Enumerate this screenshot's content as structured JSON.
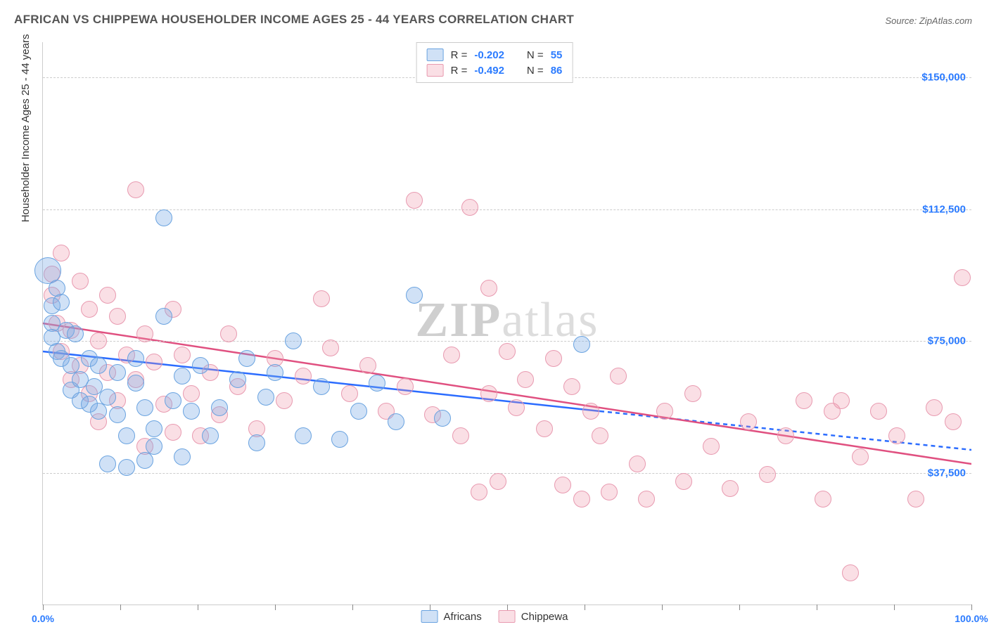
{
  "title": "AFRICAN VS CHIPPEWA HOUSEHOLDER INCOME AGES 25 - 44 YEARS CORRELATION CHART",
  "source": "Source: ZipAtlas.com",
  "watermark_a": "ZIP",
  "watermark_b": "atlas",
  "y_title": "Householder Income Ages 25 - 44 years",
  "x_min_label": "0.0%",
  "x_max_label": "100.0%",
  "legend_bottom": {
    "a": "Africans",
    "b": "Chippewa"
  },
  "stats": {
    "a": {
      "r_label": "R =",
      "r": "-0.202",
      "n_label": "N =",
      "n": "55"
    },
    "b": {
      "r_label": "R =",
      "r": "-0.492",
      "n_label": "N =",
      "n": "86"
    }
  },
  "chart": {
    "type": "scatter",
    "background_color": "#ffffff",
    "grid_color": "#cccccc",
    "x_range": [
      0,
      100
    ],
    "y_range": [
      0,
      160000
    ],
    "y_gridlines": [
      37500,
      75000,
      112500,
      150000
    ],
    "y_tick_labels": [
      "$37,500",
      "$75,000",
      "$112,500",
      "$150,000"
    ],
    "x_ticks": [
      0,
      8.33,
      16.67,
      25,
      33.33,
      41.67,
      50,
      58.33,
      66.67,
      75,
      83.33,
      91.67,
      100
    ],
    "colors": {
      "africans_fill": "rgba(120,170,230,0.35)",
      "africans_stroke": "#6aa3e0",
      "chippewa_fill": "rgba(240,150,170,0.30)",
      "chippewa_stroke": "#e89ab0",
      "line_africans": "#2b6cff",
      "line_chippewa": "#e05080",
      "tick_label": "#2b7bff"
    },
    "marker_radius": 11,
    "trend": {
      "africans": {
        "y_at_x0": 72000,
        "y_at_x60": 55000,
        "solid_until_x": 60,
        "y_at_x100": 44000
      },
      "chippewa": {
        "y_at_x0": 80000,
        "y_at_x100": 40000,
        "solid_until_x": 100
      }
    },
    "series": {
      "africans": [
        {
          "x": 0.5,
          "y": 95000,
          "r": 18
        },
        {
          "x": 1,
          "y": 85000
        },
        {
          "x": 1,
          "y": 80000
        },
        {
          "x": 1,
          "y": 76000
        },
        {
          "x": 1.5,
          "y": 90000
        },
        {
          "x": 1.5,
          "y": 72000
        },
        {
          "x": 2,
          "y": 86000
        },
        {
          "x": 2,
          "y": 70000
        },
        {
          "x": 2.5,
          "y": 78000
        },
        {
          "x": 3,
          "y": 68000
        },
        {
          "x": 3,
          "y": 61000
        },
        {
          "x": 3.5,
          "y": 77000
        },
        {
          "x": 4,
          "y": 58000
        },
        {
          "x": 4,
          "y": 64000
        },
        {
          "x": 5,
          "y": 57000
        },
        {
          "x": 5,
          "y": 70000
        },
        {
          "x": 5.5,
          "y": 62000
        },
        {
          "x": 6,
          "y": 55000
        },
        {
          "x": 6,
          "y": 68000
        },
        {
          "x": 7,
          "y": 40000
        },
        {
          "x": 7,
          "y": 59000
        },
        {
          "x": 8,
          "y": 66000
        },
        {
          "x": 8,
          "y": 54000
        },
        {
          "x": 9,
          "y": 48000
        },
        {
          "x": 9,
          "y": 39000
        },
        {
          "x": 10,
          "y": 63000
        },
        {
          "x": 10,
          "y": 70000
        },
        {
          "x": 11,
          "y": 56000
        },
        {
          "x": 11,
          "y": 41000
        },
        {
          "x": 12,
          "y": 50000
        },
        {
          "x": 12,
          "y": 45000
        },
        {
          "x": 13,
          "y": 82000
        },
        {
          "x": 13,
          "y": 110000
        },
        {
          "x": 14,
          "y": 58000
        },
        {
          "x": 15,
          "y": 65000
        },
        {
          "x": 15,
          "y": 42000
        },
        {
          "x": 16,
          "y": 55000
        },
        {
          "x": 17,
          "y": 68000
        },
        {
          "x": 18,
          "y": 48000
        },
        {
          "x": 19,
          "y": 56000
        },
        {
          "x": 21,
          "y": 64000
        },
        {
          "x": 22,
          "y": 70000
        },
        {
          "x": 23,
          "y": 46000
        },
        {
          "x": 24,
          "y": 59000
        },
        {
          "x": 25,
          "y": 66000
        },
        {
          "x": 27,
          "y": 75000
        },
        {
          "x": 28,
          "y": 48000
        },
        {
          "x": 30,
          "y": 62000
        },
        {
          "x": 32,
          "y": 47000
        },
        {
          "x": 34,
          "y": 55000
        },
        {
          "x": 36,
          "y": 63000
        },
        {
          "x": 38,
          "y": 52000
        },
        {
          "x": 40,
          "y": 88000
        },
        {
          "x": 43,
          "y": 53000
        },
        {
          "x": 58,
          "y": 74000
        }
      ],
      "chippewa": [
        {
          "x": 1,
          "y": 94000
        },
        {
          "x": 1,
          "y": 88000
        },
        {
          "x": 1.5,
          "y": 80000
        },
        {
          "x": 2,
          "y": 72000
        },
        {
          "x": 2,
          "y": 100000
        },
        {
          "x": 3,
          "y": 78000
        },
        {
          "x": 3,
          "y": 64000
        },
        {
          "x": 4,
          "y": 92000
        },
        {
          "x": 4,
          "y": 68000
        },
        {
          "x": 5,
          "y": 84000
        },
        {
          "x": 5,
          "y": 60000
        },
        {
          "x": 6,
          "y": 75000
        },
        {
          "x": 6,
          "y": 52000
        },
        {
          "x": 7,
          "y": 88000
        },
        {
          "x": 7,
          "y": 66000
        },
        {
          "x": 8,
          "y": 82000
        },
        {
          "x": 8,
          "y": 58000
        },
        {
          "x": 9,
          "y": 71000
        },
        {
          "x": 10,
          "y": 118000
        },
        {
          "x": 10,
          "y": 64000
        },
        {
          "x": 11,
          "y": 77000
        },
        {
          "x": 11,
          "y": 45000
        },
        {
          "x": 12,
          "y": 69000
        },
        {
          "x": 13,
          "y": 57000
        },
        {
          "x": 14,
          "y": 84000
        },
        {
          "x": 14,
          "y": 49000
        },
        {
          "x": 15,
          "y": 71000
        },
        {
          "x": 16,
          "y": 60000
        },
        {
          "x": 17,
          "y": 48000
        },
        {
          "x": 18,
          "y": 66000
        },
        {
          "x": 19,
          "y": 54000
        },
        {
          "x": 20,
          "y": 77000
        },
        {
          "x": 21,
          "y": 62000
        },
        {
          "x": 23,
          "y": 50000
        },
        {
          "x": 25,
          "y": 70000
        },
        {
          "x": 26,
          "y": 58000
        },
        {
          "x": 28,
          "y": 65000
        },
        {
          "x": 30,
          "y": 87000
        },
        {
          "x": 31,
          "y": 73000
        },
        {
          "x": 33,
          "y": 60000
        },
        {
          "x": 35,
          "y": 68000
        },
        {
          "x": 37,
          "y": 55000
        },
        {
          "x": 39,
          "y": 62000
        },
        {
          "x": 40,
          "y": 115000
        },
        {
          "x": 42,
          "y": 54000
        },
        {
          "x": 44,
          "y": 71000
        },
        {
          "x": 45,
          "y": 48000
        },
        {
          "x": 46,
          "y": 113000
        },
        {
          "x": 47,
          "y": 32000
        },
        {
          "x": 48,
          "y": 60000
        },
        {
          "x": 48,
          "y": 90000
        },
        {
          "x": 49,
          "y": 35000
        },
        {
          "x": 50,
          "y": 72000
        },
        {
          "x": 51,
          "y": 56000
        },
        {
          "x": 52,
          "y": 64000
        },
        {
          "x": 54,
          "y": 50000
        },
        {
          "x": 55,
          "y": 70000
        },
        {
          "x": 56,
          "y": 34000
        },
        {
          "x": 57,
          "y": 62000
        },
        {
          "x": 58,
          "y": 30000
        },
        {
          "x": 59,
          "y": 55000
        },
        {
          "x": 60,
          "y": 48000
        },
        {
          "x": 61,
          "y": 32000
        },
        {
          "x": 62,
          "y": 65000
        },
        {
          "x": 64,
          "y": 40000
        },
        {
          "x": 65,
          "y": 30000
        },
        {
          "x": 67,
          "y": 55000
        },
        {
          "x": 69,
          "y": 35000
        },
        {
          "x": 70,
          "y": 60000
        },
        {
          "x": 72,
          "y": 45000
        },
        {
          "x": 74,
          "y": 33000
        },
        {
          "x": 76,
          "y": 52000
        },
        {
          "x": 78,
          "y": 37000
        },
        {
          "x": 80,
          "y": 48000
        },
        {
          "x": 82,
          "y": 58000
        },
        {
          "x": 84,
          "y": 30000
        },
        {
          "x": 85,
          "y": 55000
        },
        {
          "x": 86,
          "y": 58000
        },
        {
          "x": 87,
          "y": 9000
        },
        {
          "x": 88,
          "y": 42000
        },
        {
          "x": 90,
          "y": 55000
        },
        {
          "x": 92,
          "y": 48000
        },
        {
          "x": 94,
          "y": 30000
        },
        {
          "x": 96,
          "y": 56000
        },
        {
          "x": 98,
          "y": 52000
        },
        {
          "x": 99,
          "y": 93000
        }
      ]
    }
  }
}
